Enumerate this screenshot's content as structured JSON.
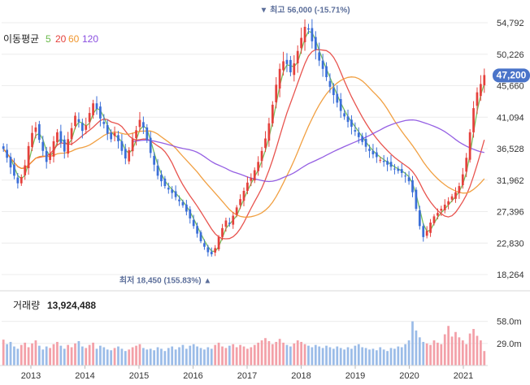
{
  "chart_data": {
    "type": "candlestick",
    "x_years": [
      "2013",
      "2014",
      "2015",
      "2016",
      "2017",
      "2018",
      "2019",
      "2020",
      "2021"
    ],
    "y_ticks": [
      "54,792",
      "50,226",
      "45,660",
      "41,094",
      "36,528",
      "31,962",
      "27,396",
      "22,830",
      "18,264"
    ],
    "y_values": [
      54792,
      50226,
      45660,
      41094,
      36528,
      31962,
      27396,
      22830,
      18264
    ],
    "current_price": 47200,
    "current_price_label": "47,200",
    "legend": {
      "title": "이동평균",
      "periods": [
        {
          "label": "5",
          "color": "#69b94a"
        },
        {
          "label": "20",
          "color": "#e5413c"
        },
        {
          "label": "60",
          "color": "#f0962e"
        },
        {
          "label": "120",
          "color": "#8a4fe0"
        }
      ]
    },
    "high_annotation": {
      "label": "최고",
      "value": "56,000",
      "pct": "(-15.71%)",
      "marker": "▼",
      "price": 56000
    },
    "low_annotation": {
      "label": "최저",
      "value": "18,450",
      "pct": "(155.83%)",
      "marker": "▲",
      "price": 18450
    },
    "volume": {
      "title": "거래량",
      "value": "13,924,488",
      "ticks": [
        "58.0m",
        "29.0m"
      ],
      "tick_values": [
        58,
        29
      ]
    },
    "colors": {
      "up": "#e5413c",
      "down": "#3b6fd8",
      "vol_up": "#f3a0a8",
      "vol_down": "#9bbce8",
      "price_tag": "#4a74c9",
      "annot": "#5b6e9a"
    },
    "close_series": [
      36500,
      35200,
      33800,
      32600,
      31500,
      32400,
      34100,
      36900,
      38800,
      39600,
      37800,
      36200,
      34600,
      35800,
      37600,
      38900,
      37400,
      36100,
      37900,
      39500,
      41300,
      40400,
      39100,
      39900,
      41700,
      43100,
      42300,
      40900,
      40100,
      38700,
      37900,
      38800,
      37600,
      36200,
      35100,
      36300,
      37900,
      39200,
      40700,
      39600,
      37800,
      35900,
      34200,
      32600,
      31800,
      31100,
      30600,
      30100,
      29500,
      28900,
      28300,
      27400,
      26400,
      25300,
      24200,
      23100,
      22300,
      21500,
      21200,
      22100,
      23700,
      25000,
      26100,
      25600,
      26800,
      28000,
      29200,
      30400,
      31600,
      32300,
      33400,
      34600,
      36200,
      38000,
      40200,
      42900,
      45800,
      48100,
      49200,
      48800,
      47600,
      48900,
      50700,
      52600,
      54200,
      53800,
      52100,
      50900,
      49300,
      48100,
      46900,
      45500,
      44300,
      43200,
      42000,
      41200,
      40400,
      39700,
      39000,
      38200,
      37500,
      36800,
      36200,
      35700,
      35300,
      34900,
      34600,
      34200,
      33900,
      33600,
      33300,
      33000,
      32500,
      31800,
      30200,
      27800,
      25300,
      23700,
      24600,
      25800,
      26700,
      27200,
      27800,
      28400,
      28900,
      29600,
      30200,
      31100,
      32800,
      35200,
      38900,
      42400,
      44700,
      45900,
      47200
    ],
    "volume_series": [
      34,
      28,
      31,
      25,
      22,
      27,
      30,
      24,
      29,
      33,
      26,
      21,
      25,
      23,
      28,
      31,
      26,
      22,
      27,
      24,
      29,
      32,
      25,
      23,
      27,
      30,
      22,
      26,
      24,
      21,
      20,
      23,
      25,
      22,
      19,
      21,
      24,
      26,
      28,
      23,
      21,
      22,
      20,
      24,
      22,
      19,
      23,
      25,
      21,
      24,
      27,
      22,
      26,
      28,
      25,
      23,
      21,
      24,
      22,
      27,
      30,
      25,
      23,
      26,
      28,
      24,
      27,
      25,
      22,
      24,
      27,
      30,
      33,
      36,
      32,
      28,
      31,
      35,
      30,
      27,
      25,
      29,
      33,
      31,
      28,
      26,
      24,
      27,
      25,
      23,
      26,
      24,
      22,
      25,
      23,
      21,
      24,
      22,
      26,
      28,
      24,
      23,
      21,
      22,
      20,
      24,
      21,
      19,
      23,
      22,
      25,
      24,
      28,
      33,
      58,
      46,
      37,
      31,
      29,
      27,
      33,
      30,
      28,
      41,
      52,
      38,
      44,
      37,
      33,
      28,
      42,
      48,
      39,
      33,
      19
    ]
  }
}
